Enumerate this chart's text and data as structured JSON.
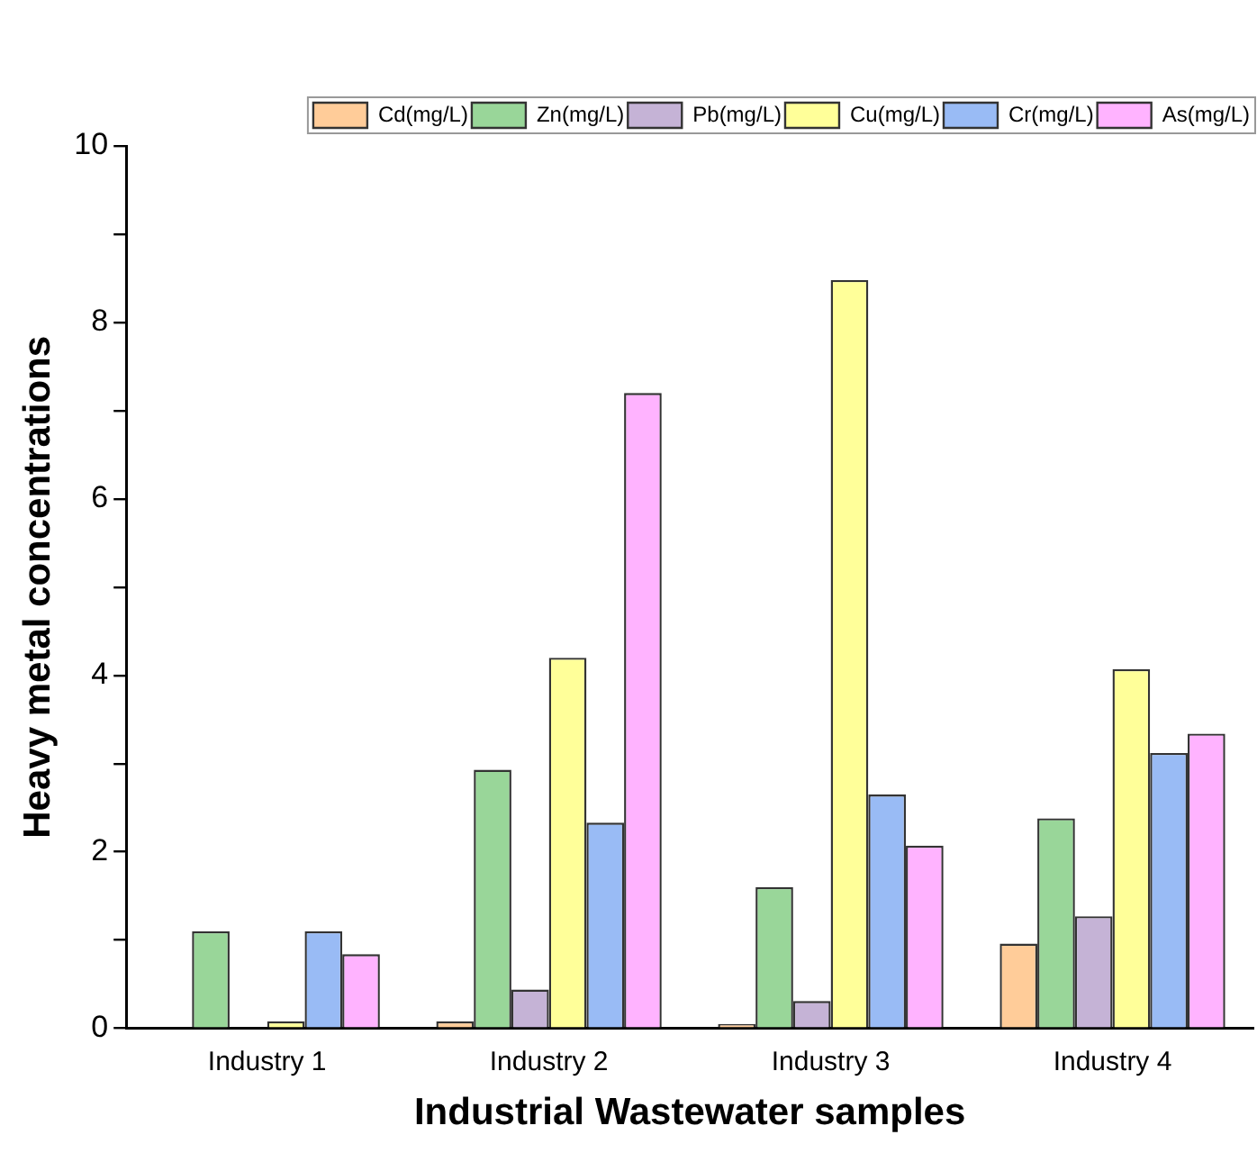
{
  "chart_data": {
    "type": "bar",
    "xlabel": "Industrial Wastewater samples",
    "ylabel": "Heavy metal concentrations",
    "categories": [
      "Industry 1",
      "Industry 2",
      "Industry 3",
      "Industry 4"
    ],
    "series": [
      {
        "name": "Cd(mg/L)",
        "color": "#ffcc99",
        "values": [
          0,
          0.08,
          0.05,
          0.96
        ]
      },
      {
        "name": "Zn(mg/L)",
        "color": "#99d699",
        "values": [
          1.1,
          2.93,
          1.6,
          2.38
        ]
      },
      {
        "name": "Pb(mg/L)",
        "color": "#c5b3d6",
        "values": [
          0,
          0.44,
          0.31,
          1.27
        ]
      },
      {
        "name": "Cu(mg/L)",
        "color": "#ffff99",
        "values": [
          0.08,
          4.2,
          8.48,
          4.07
        ]
      },
      {
        "name": "Cr(mg/L)",
        "color": "#99bbf5",
        "values": [
          1.1,
          2.33,
          2.65,
          3.12
        ]
      },
      {
        "name": "As(mg/L)",
        "color": "#ffb3ff",
        "values": [
          0.84,
          7.2,
          2.07,
          3.34
        ]
      }
    ],
    "ylim": [
      0,
      10
    ],
    "yticks": [
      0,
      {
        "value": 1,
        "label": null
      },
      2,
      {
        "value": 3,
        "label": null
      },
      4,
      {
        "value": 5,
        "label": null
      },
      6,
      {
        "value": 7,
        "label": null
      },
      8,
      {
        "value": 9,
        "label": null
      },
      10
    ],
    "grid": false,
    "legend": "top right"
  }
}
